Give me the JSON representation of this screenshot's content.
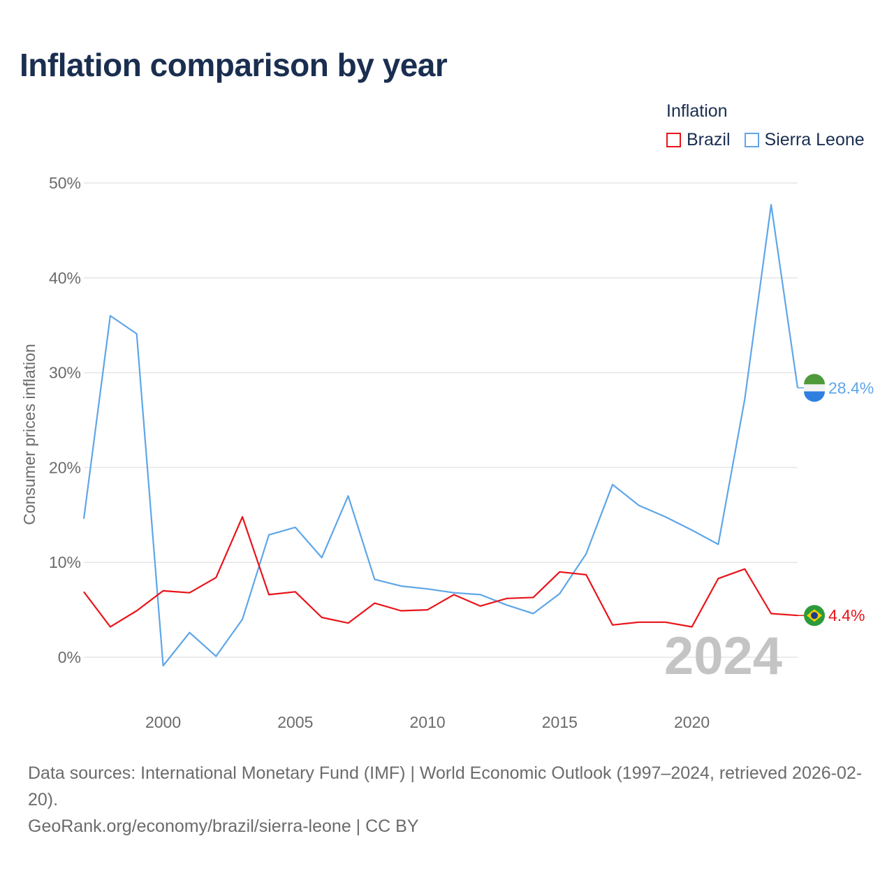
{
  "title": "Inflation comparison by year",
  "legend": {
    "title": "Inflation",
    "items": [
      {
        "label": "Brazil",
        "color": "#e8141a"
      },
      {
        "label": "Sierra Leone",
        "color": "#5ea6e8"
      }
    ]
  },
  "footer": {
    "sources": "Data sources: International Monetary Fund (IMF) | World Economic Outlook (1997–2024, retrieved 2026-02-20).",
    "credit": "GeoRank.org/economy/brazil/sierra-leone | CC BY"
  },
  "chart_data": {
    "type": "line",
    "title": "Inflation comparison by year",
    "xlabel": "",
    "ylabel": "Consumer prices inflation",
    "xlim": [
      1997,
      2024
    ],
    "ylim": [
      -5,
      50
    ],
    "x_ticks": [
      2000,
      2005,
      2010,
      2015,
      2020
    ],
    "y_ticks": [
      0,
      10,
      20,
      30,
      40,
      50
    ],
    "y_tick_labels": [
      "0%",
      "10%",
      "20%",
      "30%",
      "40%",
      "50%"
    ],
    "year_watermark": "2024",
    "x": [
      1997,
      1998,
      1999,
      2000,
      2001,
      2002,
      2003,
      2004,
      2005,
      2006,
      2007,
      2008,
      2009,
      2010,
      2011,
      2012,
      2013,
      2014,
      2015,
      2016,
      2017,
      2018,
      2019,
      2020,
      2021,
      2022,
      2023,
      2024
    ],
    "series": [
      {
        "name": "Brazil",
        "color": "#e8141a",
        "end_label": "4.4%",
        "icon": "brazil-flag-icon",
        "values": [
          6.9,
          3.2,
          4.9,
          7.0,
          6.8,
          8.4,
          14.8,
          6.6,
          6.9,
          4.2,
          3.6,
          5.7,
          4.9,
          5.0,
          6.6,
          5.4,
          6.2,
          6.3,
          9.0,
          8.7,
          3.4,
          3.7,
          3.7,
          3.2,
          8.3,
          9.3,
          4.6,
          4.4
        ]
      },
      {
        "name": "Sierra Leone",
        "color": "#5ea6e8",
        "end_label": "28.4%",
        "icon": "sierra-leone-flag-icon",
        "values": [
          14.6,
          36.0,
          34.1,
          -0.9,
          2.6,
          0.1,
          4.0,
          12.9,
          13.7,
          10.5,
          17.0,
          8.2,
          7.5,
          7.2,
          6.8,
          6.6,
          5.5,
          4.6,
          6.7,
          10.9,
          18.2,
          16.0,
          14.8,
          13.4,
          11.9,
          27.2,
          47.7,
          28.4
        ]
      }
    ]
  }
}
